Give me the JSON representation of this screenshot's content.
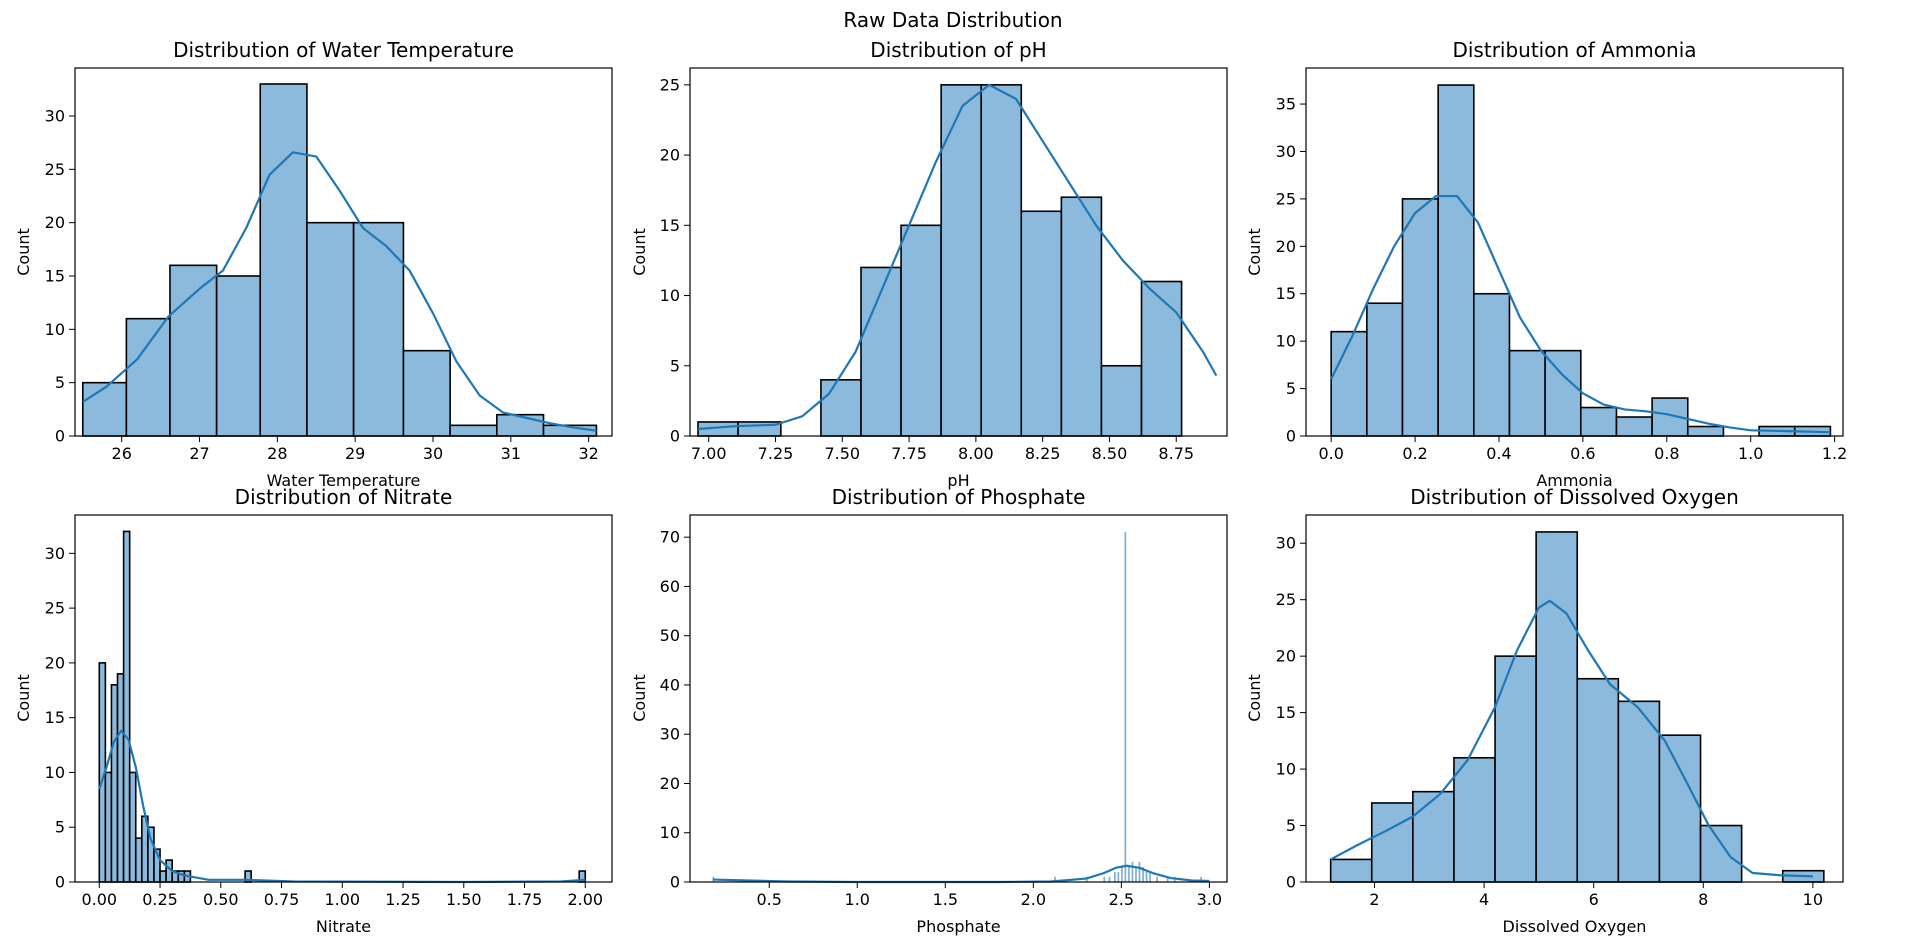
{
  "figure": {
    "title": "Raw Data Distribution",
    "bar_fill": "#8bbadc",
    "bar_edge": "#000000",
    "kde_color": "#1f77b4"
  },
  "chart_data": [
    {
      "type": "bar",
      "title": "Distribution of Water Temperature",
      "xlabel": "Water Temperature",
      "ylabel": "Count",
      "xlim": [
        25.4,
        32.3
      ],
      "ylim": [
        0,
        34.5
      ],
      "xticks": [
        26,
        27,
        28,
        29,
        30,
        31,
        32
      ],
      "xtick_labels": [
        "26",
        "27",
        "28",
        "29",
        "30",
        "31",
        "32"
      ],
      "yticks": [
        0,
        5,
        10,
        15,
        20,
        25,
        30
      ],
      "ytick_labels": [
        "0",
        "5",
        "10",
        "15",
        "20",
        "25",
        "30"
      ],
      "bins": [
        [
          25.5,
          26.06,
          5
        ],
        [
          26.06,
          26.62,
          11
        ],
        [
          26.62,
          27.22,
          16
        ],
        [
          27.22,
          27.78,
          15
        ],
        [
          27.78,
          28.38,
          33
        ],
        [
          28.38,
          28.98,
          20
        ],
        [
          28.98,
          29.62,
          20
        ],
        [
          29.62,
          30.22,
          8
        ],
        [
          30.22,
          30.82,
          1
        ],
        [
          30.82,
          31.42,
          2
        ],
        [
          31.42,
          32.1,
          1
        ]
      ],
      "kde": [
        [
          25.5,
          3.2
        ],
        [
          25.8,
          4.6
        ],
        [
          26.2,
          7.2
        ],
        [
          26.6,
          11.2
        ],
        [
          27.0,
          13.8
        ],
        [
          27.3,
          15.5
        ],
        [
          27.6,
          19.5
        ],
        [
          27.9,
          24.5
        ],
        [
          28.2,
          26.6
        ],
        [
          28.5,
          26.2
        ],
        [
          28.8,
          23.0
        ],
        [
          29.1,
          19.5
        ],
        [
          29.4,
          17.8
        ],
        [
          29.7,
          15.5
        ],
        [
          30.0,
          11.5
        ],
        [
          30.3,
          7.0
        ],
        [
          30.6,
          3.8
        ],
        [
          30.9,
          2.2
        ],
        [
          31.2,
          1.7
        ],
        [
          31.5,
          1.2
        ],
        [
          31.8,
          0.8
        ],
        [
          32.1,
          0.5
        ]
      ]
    },
    {
      "type": "bar",
      "title": "Distribution of pH",
      "xlabel": "pH",
      "ylabel": "Count",
      "xlim": [
        6.93,
        8.94
      ],
      "ylim": [
        0,
        26.2
      ],
      "xticks": [
        7.0,
        7.25,
        7.5,
        7.75,
        8.0,
        8.25,
        8.5,
        8.75
      ],
      "xtick_labels": [
        "7.00",
        "7.25",
        "7.50",
        "7.75",
        "8.00",
        "8.25",
        "8.50",
        "8.75"
      ],
      "yticks": [
        0,
        5,
        10,
        15,
        20,
        25
      ],
      "ytick_labels": [
        "0",
        "5",
        "10",
        "15",
        "20",
        "25"
      ],
      "bins": [
        [
          6.96,
          7.11,
          1
        ],
        [
          7.11,
          7.27,
          1
        ],
        [
          7.27,
          7.42,
          0
        ],
        [
          7.42,
          7.57,
          4
        ],
        [
          7.57,
          7.72,
          12
        ],
        [
          7.72,
          7.87,
          15
        ],
        [
          7.87,
          8.02,
          25
        ],
        [
          8.02,
          8.17,
          25
        ],
        [
          8.17,
          8.32,
          16
        ],
        [
          8.32,
          8.47,
          17
        ],
        [
          8.47,
          8.62,
          5
        ],
        [
          8.62,
          8.77,
          11
        ]
      ],
      "kde": [
        [
          6.96,
          0.5
        ],
        [
          7.1,
          0.7
        ],
        [
          7.25,
          0.8
        ],
        [
          7.35,
          1.4
        ],
        [
          7.45,
          3.0
        ],
        [
          7.55,
          6.0
        ],
        [
          7.65,
          10.5
        ],
        [
          7.75,
          15.0
        ],
        [
          7.85,
          19.5
        ],
        [
          7.95,
          23.5
        ],
        [
          8.05,
          25.0
        ],
        [
          8.15,
          24.0
        ],
        [
          8.25,
          21.0
        ],
        [
          8.35,
          18.0
        ],
        [
          8.45,
          15.0
        ],
        [
          8.55,
          12.5
        ],
        [
          8.65,
          10.5
        ],
        [
          8.75,
          8.8
        ],
        [
          8.85,
          6.0
        ],
        [
          8.9,
          4.3
        ]
      ]
    },
    {
      "type": "bar",
      "title": "Distribution of Ammonia",
      "xlabel": "Ammonia",
      "ylabel": "Count",
      "xlim": [
        -0.06,
        1.22
      ],
      "ylim": [
        0,
        38.8
      ],
      "xticks": [
        0.0,
        0.2,
        0.4,
        0.6,
        0.8,
        1.0,
        1.2
      ],
      "xtick_labels": [
        "0.0",
        "0.2",
        "0.4",
        "0.6",
        "0.8",
        "1.0",
        "1.2"
      ],
      "yticks": [
        0,
        5,
        10,
        15,
        20,
        25,
        30,
        35
      ],
      "ytick_labels": [
        "0",
        "5",
        "10",
        "15",
        "20",
        "25",
        "30",
        "35"
      ],
      "bins": [
        [
          0.0,
          0.085,
          11
        ],
        [
          0.085,
          0.17,
          14
        ],
        [
          0.17,
          0.255,
          25
        ],
        [
          0.255,
          0.34,
          37
        ],
        [
          0.34,
          0.425,
          15
        ],
        [
          0.425,
          0.51,
          9
        ],
        [
          0.51,
          0.595,
          9
        ],
        [
          0.595,
          0.68,
          3
        ],
        [
          0.68,
          0.765,
          2
        ],
        [
          0.765,
          0.85,
          4
        ],
        [
          0.85,
          0.935,
          1
        ],
        [
          0.935,
          1.02,
          0
        ],
        [
          1.02,
          1.105,
          1
        ],
        [
          1.105,
          1.19,
          1
        ]
      ],
      "kde": [
        [
          0.0,
          6.0
        ],
        [
          0.05,
          10.5
        ],
        [
          0.1,
          15.5
        ],
        [
          0.15,
          20.0
        ],
        [
          0.2,
          23.5
        ],
        [
          0.25,
          25.3
        ],
        [
          0.3,
          25.3
        ],
        [
          0.35,
          22.5
        ],
        [
          0.4,
          17.5
        ],
        [
          0.45,
          12.5
        ],
        [
          0.5,
          9.0
        ],
        [
          0.55,
          6.5
        ],
        [
          0.6,
          4.5
        ],
        [
          0.65,
          3.3
        ],
        [
          0.7,
          2.8
        ],
        [
          0.75,
          2.6
        ],
        [
          0.8,
          2.3
        ],
        [
          0.85,
          1.8
        ],
        [
          0.9,
          1.3
        ],
        [
          0.95,
          0.9
        ],
        [
          1.0,
          0.6
        ],
        [
          1.1,
          0.5
        ],
        [
          1.19,
          0.4
        ]
      ]
    },
    {
      "type": "bar",
      "title": "Distribution of Nitrate",
      "xlabel": "Nitrate",
      "ylabel": "Count",
      "xlim": [
        -0.1,
        2.11
      ],
      "ylim": [
        0,
        33.5
      ],
      "xticks": [
        0.0,
        0.25,
        0.5,
        0.75,
        1.0,
        1.25,
        1.5,
        1.75,
        2.0
      ],
      "xtick_labels": [
        "0.00",
        "0.25",
        "0.50",
        "0.75",
        "1.00",
        "1.25",
        "1.50",
        "1.75",
        "2.00"
      ],
      "yticks": [
        0,
        5,
        10,
        15,
        20,
        25,
        30
      ],
      "ytick_labels": [
        "0",
        "5",
        "10",
        "15",
        "20",
        "25",
        "30"
      ],
      "bins": [
        [
          0.0,
          0.025,
          20
        ],
        [
          0.025,
          0.05,
          10
        ],
        [
          0.05,
          0.075,
          18
        ],
        [
          0.075,
          0.1,
          19
        ],
        [
          0.1,
          0.125,
          32
        ],
        [
          0.125,
          0.15,
          10
        ],
        [
          0.15,
          0.175,
          4
        ],
        [
          0.175,
          0.2,
          6
        ],
        [
          0.2,
          0.225,
          5
        ],
        [
          0.225,
          0.25,
          3
        ],
        [
          0.25,
          0.275,
          1
        ],
        [
          0.275,
          0.3,
          2
        ],
        [
          0.3,
          0.325,
          1
        ],
        [
          0.325,
          0.35,
          1
        ],
        [
          0.35,
          0.375,
          1
        ],
        [
          0.6,
          0.625,
          1
        ],
        [
          1.975,
          2.0,
          1
        ]
      ],
      "kde": [
        [
          0.0,
          8.5
        ],
        [
          0.03,
          10.5
        ],
        [
          0.06,
          12.8
        ],
        [
          0.09,
          13.8
        ],
        [
          0.12,
          13.0
        ],
        [
          0.15,
          10.5
        ],
        [
          0.18,
          7.0
        ],
        [
          0.21,
          4.0
        ],
        [
          0.25,
          2.0
        ],
        [
          0.3,
          1.0
        ],
        [
          0.35,
          0.6
        ],
        [
          0.45,
          0.2
        ],
        [
          0.6,
          0.2
        ],
        [
          0.8,
          0.05
        ],
        [
          1.5,
          0.0
        ],
        [
          1.9,
          0.05
        ],
        [
          2.0,
          0.2
        ]
      ]
    },
    {
      "type": "bar",
      "title": "Distribution of Phosphate",
      "xlabel": "Phosphate",
      "ylabel": "Count",
      "xlim": [
        0.05,
        3.1
      ],
      "ylim": [
        0,
        74.5
      ],
      "xticks": [
        0.5,
        1.0,
        1.5,
        2.0,
        2.5,
        3.0
      ],
      "xtick_labels": [
        "0.5",
        "1.0",
        "1.5",
        "2.0",
        "2.5",
        "3.0"
      ],
      "yticks": [
        0,
        10,
        20,
        30,
        40,
        50,
        60,
        70
      ],
      "ytick_labels": [
        "0",
        "10",
        "20",
        "30",
        "40",
        "50",
        "60",
        "70"
      ],
      "bins": [
        [
          0.18,
          0.186,
          1
        ],
        [
          2.12,
          2.126,
          1
        ],
        [
          2.3,
          2.306,
          1
        ],
        [
          2.4,
          2.406,
          1
        ],
        [
          2.43,
          2.436,
          1
        ],
        [
          2.46,
          2.466,
          2
        ],
        [
          2.48,
          2.486,
          2
        ],
        [
          2.5,
          2.506,
          3
        ],
        [
          2.52,
          2.526,
          71
        ],
        [
          2.54,
          2.546,
          3
        ],
        [
          2.56,
          2.566,
          4
        ],
        [
          2.58,
          2.586,
          3
        ],
        [
          2.6,
          2.606,
          4
        ],
        [
          2.62,
          2.626,
          3
        ],
        [
          2.64,
          2.646,
          2
        ],
        [
          2.66,
          2.666,
          2
        ],
        [
          2.7,
          2.706,
          1
        ],
        [
          2.76,
          2.766,
          1
        ],
        [
          2.8,
          2.806,
          1
        ],
        [
          2.95,
          2.956,
          1
        ]
      ],
      "kde": [
        [
          0.18,
          0.5
        ],
        [
          0.6,
          0.1
        ],
        [
          1.0,
          0.0
        ],
        [
          1.8,
          0.0
        ],
        [
          2.1,
          0.1
        ],
        [
          2.3,
          0.7
        ],
        [
          2.4,
          1.8
        ],
        [
          2.47,
          2.9
        ],
        [
          2.53,
          3.3
        ],
        [
          2.6,
          2.9
        ],
        [
          2.68,
          1.8
        ],
        [
          2.78,
          0.8
        ],
        [
          2.9,
          0.3
        ],
        [
          3.0,
          0.2
        ]
      ]
    },
    {
      "type": "bar",
      "title": "Distribution of Dissolved Oxygen",
      "xlabel": "Dissolved Oxygen",
      "ylabel": "Count",
      "xlim": [
        0.75,
        10.55
      ],
      "ylim": [
        0,
        32.5
      ],
      "xticks": [
        2,
        4,
        6,
        8,
        10
      ],
      "xtick_labels": [
        "2",
        "4",
        "6",
        "8",
        "10"
      ],
      "yticks": [
        0,
        5,
        10,
        15,
        20,
        25,
        30
      ],
      "ytick_labels": [
        "0",
        "5",
        "10",
        "15",
        "20",
        "25",
        "30"
      ],
      "bins": [
        [
          1.2,
          1.95,
          2
        ],
        [
          1.95,
          2.7,
          7
        ],
        [
          2.7,
          3.45,
          8
        ],
        [
          3.45,
          4.2,
          11
        ],
        [
          4.2,
          4.95,
          20
        ],
        [
          4.95,
          5.7,
          31
        ],
        [
          5.7,
          6.45,
          18
        ],
        [
          6.45,
          7.2,
          16
        ],
        [
          7.2,
          7.95,
          13
        ],
        [
          7.95,
          8.7,
          5
        ],
        [
          8.7,
          9.45,
          0
        ],
        [
          9.45,
          10.2,
          1
        ]
      ],
      "kde": [
        [
          1.2,
          2.0
        ],
        [
          1.7,
          3.3
        ],
        [
          2.2,
          4.5
        ],
        [
          2.7,
          5.8
        ],
        [
          3.2,
          7.8
        ],
        [
          3.7,
          10.8
        ],
        [
          4.2,
          15.5
        ],
        [
          4.6,
          20.5
        ],
        [
          5.0,
          24.3
        ],
        [
          5.2,
          24.9
        ],
        [
          5.5,
          23.8
        ],
        [
          5.9,
          20.5
        ],
        [
          6.3,
          17.5
        ],
        [
          6.8,
          15.5
        ],
        [
          7.3,
          12.5
        ],
        [
          7.7,
          8.8
        ],
        [
          8.1,
          5.0
        ],
        [
          8.5,
          2.2
        ],
        [
          8.9,
          0.8
        ],
        [
          9.4,
          0.6
        ],
        [
          10.0,
          0.5
        ]
      ]
    }
  ]
}
